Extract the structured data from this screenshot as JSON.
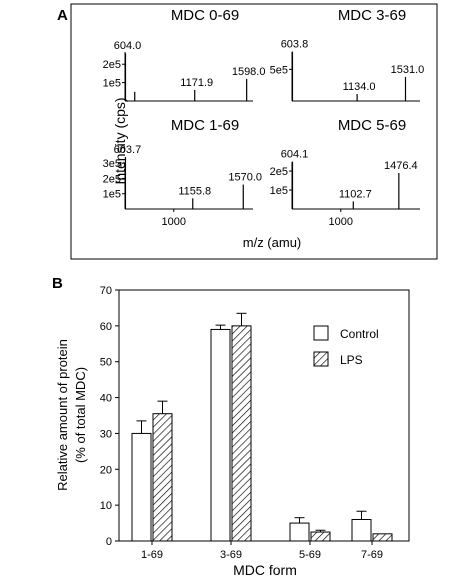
{
  "panel_a": {
    "label": "A",
    "ylabel": "Intensity (cps)",
    "xlabel": "m/z (amu)"
  },
  "panel_b": {
    "label": "B",
    "legend": [
      "Control",
      "LPS"
    ]
  },
  "chart_data": [
    {
      "type": "spectrum",
      "title": "MDC 0-69",
      "ytick_labels": [
        "2e5",
        "1e5"
      ],
      "yticks": [
        200000,
        100000
      ],
      "ylim": [
        0,
        310000
      ],
      "xlim": [
        600,
        1650
      ],
      "peaks": [
        {
          "x": 604.0,
          "y": 260000,
          "label": "604.0"
        },
        {
          "x": 680,
          "y": 50000,
          "label": ""
        },
        {
          "x": 1171.9,
          "y": 60000,
          "label": "1171.9"
        },
        {
          "x": 1598.0,
          "y": 120000,
          "label": "1598.0"
        }
      ]
    },
    {
      "type": "spectrum",
      "title": "MDC 3-69",
      "ytick_labels": [
        "5e5"
      ],
      "yticks": [
        500000
      ],
      "ylim": [
        0,
        900000
      ],
      "xlim": [
        600,
        1650
      ],
      "peaks": [
        {
          "x": 603.8,
          "y": 780000,
          "label": "603.8"
        },
        {
          "x": 1134.0,
          "y": 110000,
          "label": "1134.0"
        },
        {
          "x": 1531.0,
          "y": 380000,
          "label": "1531.0"
        }
      ]
    },
    {
      "type": "spectrum",
      "title": "MDC 1-69",
      "ytick_labels": [
        "3e5",
        "2e5",
        "1e5"
      ],
      "yticks": [
        300000,
        200000,
        100000
      ],
      "ylim": [
        0,
        360000
      ],
      "xlim": [
        600,
        1650
      ],
      "xtick_labels": [
        "1000"
      ],
      "xticks": [
        1000
      ],
      "peaks": [
        {
          "x": 603.7,
          "y": 340000,
          "label": "603.7"
        },
        {
          "x": 1155.8,
          "y": 70000,
          "label": "1155.8"
        },
        {
          "x": 1570.0,
          "y": 160000,
          "label": "1570.0"
        }
      ]
    },
    {
      "type": "spectrum",
      "title": "MDC 5-69",
      "ytick_labels": [
        "2e5",
        "1e5"
      ],
      "yticks": [
        200000,
        100000
      ],
      "ylim": [
        0,
        290000
      ],
      "xlim": [
        600,
        1650
      ],
      "xtick_labels": [
        "1000"
      ],
      "xticks": [
        1000
      ],
      "peaks": [
        {
          "x": 604.1,
          "y": 250000,
          "label": "604.1"
        },
        {
          "x": 1102.7,
          "y": 40000,
          "label": "1102.7"
        },
        {
          "x": 1476.4,
          "y": 190000,
          "label": "1476.4"
        }
      ]
    },
    {
      "type": "bar",
      "categories": [
        "1-69",
        "3-69",
        "5-69",
        "7-69"
      ],
      "series": [
        {
          "name": "Control",
          "values": [
            30,
            59,
            5,
            6
          ],
          "errors": [
            3.5,
            1.2,
            1.5,
            2.3
          ]
        },
        {
          "name": "LPS",
          "values": [
            35.5,
            60,
            2.5,
            2
          ],
          "errors": [
            3.5,
            3.5,
            0.5,
            0
          ]
        }
      ],
      "xlabel": "MDC form",
      "ylabel": "Relative amount of protein (% of total MDC)",
      "ylim": [
        0,
        70
      ],
      "yticks": [
        0,
        10,
        20,
        30,
        40,
        50,
        60,
        70
      ],
      "legend_position": "top-right"
    }
  ]
}
